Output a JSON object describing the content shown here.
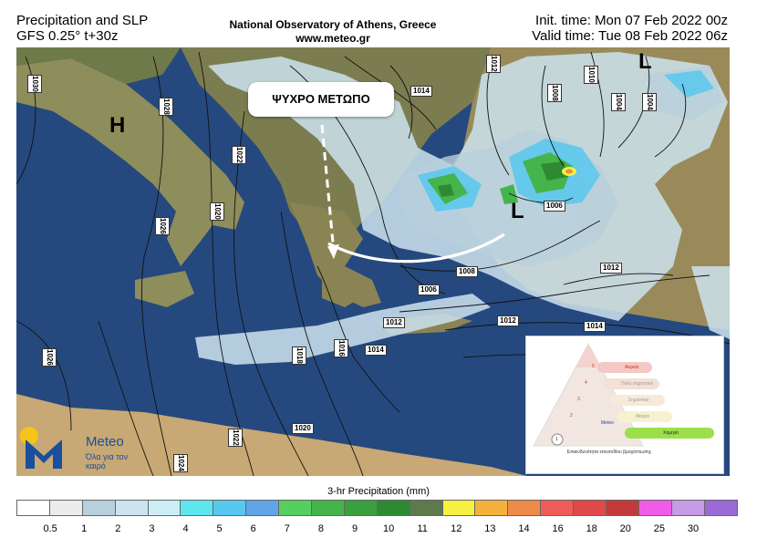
{
  "header": {
    "product_title": "Precipitation and SLP",
    "model_line": "GFS 0.25° t+30z",
    "observatory": "National Observatory of Athens, Greece",
    "website": "www.meteo.gr",
    "init_time": "Init. time: Mon 07 Feb 2022 00z",
    "valid_time": "Valid time: Tue 08 Feb 2022 06z"
  },
  "annotation": {
    "front_label": "ΨΥΧΡΟ ΜΕΤΩΠΟ"
  },
  "pressure_centers": {
    "high": "H",
    "low": "L"
  },
  "isobars": [
    "1030",
    "1028",
    "1026",
    "1026",
    "1024",
    "1022",
    "1022",
    "1020",
    "1020",
    "1018",
    "1016",
    "1014",
    "1014",
    "1012",
    "1012",
    "1012",
    "1012",
    "1010",
    "1008",
    "1008",
    "1006",
    "1006",
    "1004",
    "1004",
    "1004",
    "1014"
  ],
  "logo": {
    "name": "Meteo",
    "slogan": "Όλα για τον καιρό"
  },
  "inset": {
    "levels": [
      "5",
      "4",
      "3",
      "2",
      "1"
    ],
    "labels": [
      "Ακραίο",
      "Πολύ σημαντικό",
      "Σημαντικό",
      "Μέτριο",
      "Χαμηλό"
    ],
    "caption": "Επικινδυνότητα επεισοδίου βροχόπτωσης",
    "brand": "Meteo"
  },
  "legend": {
    "title": "3-hr Precipitation (mm)",
    "colors": [
      "#ffffff",
      "#ececec",
      "#b8cfdc",
      "#cde3ef",
      "#cdeef6",
      "#5ee6ef",
      "#58c8ee",
      "#5fa5e8",
      "#55d060",
      "#45b44b",
      "#3a9f3d",
      "#2e8a32",
      "#5d7a4c",
      "#f6f142",
      "#f4b23d",
      "#ef8b4a",
      "#ee5d58",
      "#e04a4a",
      "#c43a3a",
      "#f05ce8",
      "#c89be6",
      "#9b6ad6"
    ],
    "ticks": [
      "0.5",
      "1",
      "2",
      "3",
      "4",
      "5",
      "6",
      "7",
      "8",
      "9",
      "10",
      "11",
      "12",
      "13",
      "14",
      "16",
      "18",
      "20",
      "25",
      "30"
    ]
  }
}
